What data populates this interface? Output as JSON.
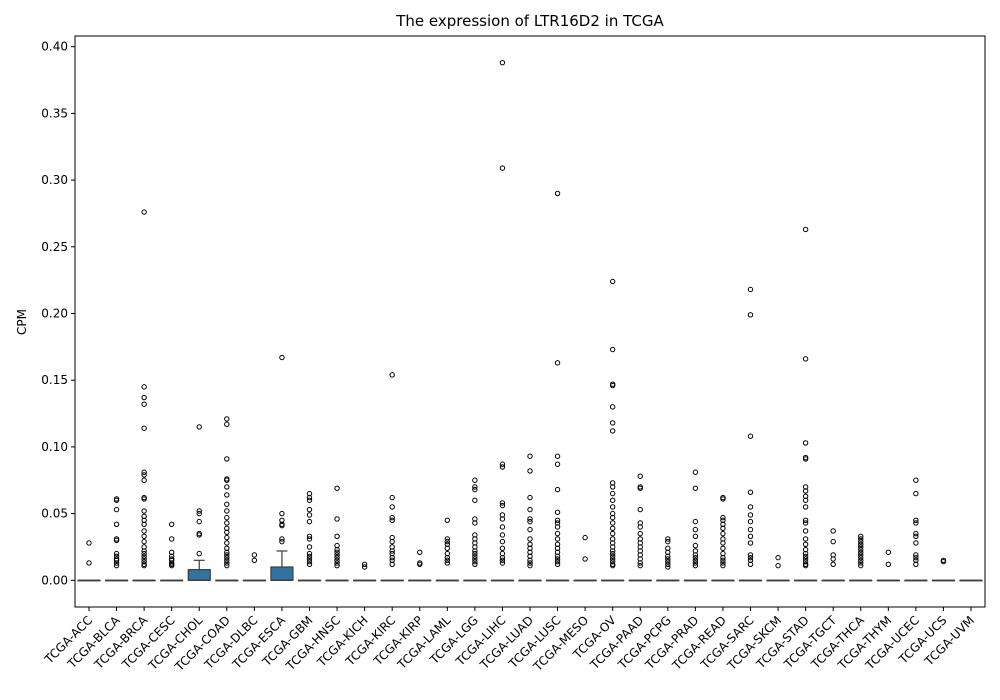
{
  "chart_data": {
    "type": "box",
    "title": "The expression of LTR16D2 in TCGA",
    "xlabel": "",
    "ylabel": "CPM",
    "ylim": [
      -0.02,
      0.408
    ],
    "yticks": [
      "0.00",
      "0.05",
      "0.10",
      "0.15",
      "0.20",
      "0.25",
      "0.30",
      "0.35",
      "0.40"
    ],
    "box_color": "#3274a1",
    "categories": [
      "TCGA-ACC",
      "TCGA-BLCA",
      "TCGA-BRCA",
      "TCGA-CESC",
      "TCGA-CHOL",
      "TCGA-COAD",
      "TCGA-DLBC",
      "TCGA-ESCA",
      "TCGA-GBM",
      "TCGA-HNSC",
      "TCGA-KICH",
      "TCGA-KIRC",
      "TCGA-KIRP",
      "TCGA-LAML",
      "TCGA-LGG",
      "TCGA-LIHC",
      "TCGA-LUAD",
      "TCGA-LUSC",
      "TCGA-MESO",
      "TCGA-OV",
      "TCGA-PAAD",
      "TCGA-PCPG",
      "TCGA-PRAD",
      "TCGA-READ",
      "TCGA-SARC",
      "TCGA-SKCM",
      "TCGA-STAD",
      "TCGA-TGCT",
      "TCGA-THCA",
      "TCGA-THYM",
      "TCGA-UCEC",
      "TCGA-UCS",
      "TCGA-UVM"
    ],
    "boxes": [
      {
        "q1": 0,
        "median": 0,
        "q3": 0,
        "whisker_high": 0,
        "outliers": [
          0.028,
          0.013
        ]
      },
      {
        "q1": 0,
        "median": 0,
        "q3": 0,
        "whisker_high": 0,
        "outliers": [
          0.061,
          0.06,
          0.053,
          0.042,
          0.031,
          0.03,
          0.02,
          0.018,
          0.016,
          0.015,
          0.013,
          0.011
        ]
      },
      {
        "q1": 0,
        "median": 0,
        "q3": 0,
        "whisker_high": 0,
        "outliers": [
          0.276,
          0.145,
          0.137,
          0.132,
          0.114,
          0.081,
          0.079,
          0.075,
          0.062,
          0.061,
          0.052,
          0.048,
          0.045,
          0.042,
          0.037,
          0.033,
          0.029,
          0.025,
          0.022,
          0.02,
          0.018,
          0.016,
          0.014,
          0.012,
          0.011
        ]
      },
      {
        "q1": 0,
        "median": 0,
        "q3": 0,
        "whisker_high": 0,
        "outliers": [
          0.042,
          0.031,
          0.021,
          0.018,
          0.016,
          0.015,
          0.013,
          0.012,
          0.011
        ]
      },
      {
        "q1": 0,
        "median": 0,
        "q3": 0.008,
        "whisker_high": 0.015,
        "outliers": [
          0.115,
          0.052,
          0.05,
          0.044,
          0.035,
          0.034,
          0.02
        ]
      },
      {
        "q1": 0,
        "median": 0,
        "q3": 0,
        "whisker_high": 0,
        "outliers": [
          0.121,
          0.117,
          0.091,
          0.076,
          0.075,
          0.07,
          0.064,
          0.057,
          0.052,
          0.047,
          0.043,
          0.039,
          0.036,
          0.032,
          0.028,
          0.024,
          0.021,
          0.019,
          0.017,
          0.015,
          0.013,
          0.011
        ]
      },
      {
        "q1": 0,
        "median": 0,
        "q3": 0,
        "whisker_high": 0,
        "outliers": [
          0.019,
          0.015
        ]
      },
      {
        "q1": 0,
        "median": 0,
        "q3": 0.01,
        "whisker_high": 0.022,
        "outliers": [
          0.167,
          0.05,
          0.045,
          0.042,
          0.041,
          0.031,
          0.029
        ]
      },
      {
        "q1": 0,
        "median": 0,
        "q3": 0,
        "whisker_high": 0,
        "outliers": [
          0.065,
          0.062,
          0.06,
          0.053,
          0.049,
          0.044,
          0.033,
          0.031,
          0.025,
          0.02,
          0.018,
          0.016,
          0.014,
          0.012
        ]
      },
      {
        "q1": 0,
        "median": 0,
        "q3": 0,
        "whisker_high": 0,
        "outliers": [
          0.069,
          0.046,
          0.033,
          0.026,
          0.023,
          0.021,
          0.019,
          0.017,
          0.015,
          0.013,
          0.011
        ]
      },
      {
        "q1": 0,
        "median": 0,
        "q3": 0,
        "whisker_high": 0,
        "outliers": [
          0.012,
          0.01
        ]
      },
      {
        "q1": 0,
        "median": 0,
        "q3": 0,
        "whisker_high": 0,
        "outliers": [
          0.154,
          0.062,
          0.055,
          0.047,
          0.045,
          0.032,
          0.029,
          0.025,
          0.022,
          0.02,
          0.017,
          0.015,
          0.012
        ]
      },
      {
        "q1": 0,
        "median": 0,
        "q3": 0,
        "whisker_high": 0,
        "outliers": [
          0.021,
          0.013,
          0.012
        ]
      },
      {
        "q1": 0,
        "median": 0,
        "q3": 0,
        "whisker_high": 0,
        "outliers": [
          0.045,
          0.031,
          0.029,
          0.027,
          0.024,
          0.02,
          0.017,
          0.015,
          0.013
        ]
      },
      {
        "q1": 0,
        "median": 0,
        "q3": 0,
        "whisker_high": 0,
        "outliers": [
          0.075,
          0.07,
          0.068,
          0.06,
          0.046,
          0.043,
          0.034,
          0.031,
          0.028,
          0.025,
          0.022,
          0.02,
          0.018,
          0.016,
          0.014,
          0.012
        ]
      },
      {
        "q1": 0,
        "median": 0,
        "q3": 0,
        "whisker_high": 0,
        "outliers": [
          0.388,
          0.309,
          0.087,
          0.085,
          0.058,
          0.056,
          0.049,
          0.046,
          0.04,
          0.034,
          0.029,
          0.024,
          0.02,
          0.017,
          0.015,
          0.013
        ]
      },
      {
        "q1": 0,
        "median": 0,
        "q3": 0,
        "whisker_high": 0,
        "outliers": [
          0.093,
          0.082,
          0.062,
          0.053,
          0.046,
          0.044,
          0.038,
          0.031,
          0.027,
          0.024,
          0.021,
          0.018,
          0.015,
          0.013,
          0.011
        ]
      },
      {
        "q1": 0,
        "median": 0,
        "q3": 0,
        "whisker_high": 0,
        "outliers": [
          0.29,
          0.163,
          0.093,
          0.087,
          0.068,
          0.051,
          0.045,
          0.043,
          0.04,
          0.035,
          0.031,
          0.027,
          0.024,
          0.021,
          0.018,
          0.016,
          0.014,
          0.012
        ]
      },
      {
        "q1": 0,
        "median": 0,
        "q3": 0,
        "whisker_high": 0,
        "outliers": [
          0.032,
          0.016
        ]
      },
      {
        "q1": 0,
        "median": 0,
        "q3": 0,
        "whisker_high": 0,
        "outliers": [
          0.224,
          0.173,
          0.147,
          0.146,
          0.13,
          0.118,
          0.112,
          0.073,
          0.07,
          0.065,
          0.06,
          0.055,
          0.05,
          0.047,
          0.043,
          0.039,
          0.035,
          0.031,
          0.028,
          0.025,
          0.022,
          0.02,
          0.018,
          0.016,
          0.014,
          0.012,
          0.011
        ]
      },
      {
        "q1": 0,
        "median": 0,
        "q3": 0,
        "whisker_high": 0,
        "outliers": [
          0.078,
          0.07,
          0.069,
          0.053,
          0.043,
          0.04,
          0.035,
          0.031,
          0.028,
          0.025,
          0.022,
          0.019,
          0.016,
          0.013,
          0.011
        ]
      },
      {
        "q1": 0,
        "median": 0,
        "q3": 0,
        "whisker_high": 0,
        "outliers": [
          0.031,
          0.029,
          0.024,
          0.021,
          0.018,
          0.016,
          0.014,
          0.012,
          0.01
        ]
      },
      {
        "q1": 0,
        "median": 0,
        "q3": 0,
        "whisker_high": 0,
        "outliers": [
          0.081,
          0.069,
          0.044,
          0.038,
          0.033,
          0.026,
          0.022,
          0.019,
          0.017,
          0.015,
          0.013,
          0.011
        ]
      },
      {
        "q1": 0,
        "median": 0,
        "q3": 0,
        "whisker_high": 0,
        "outliers": [
          0.062,
          0.061,
          0.047,
          0.045,
          0.042,
          0.039,
          0.035,
          0.031,
          0.028,
          0.024,
          0.02,
          0.017,
          0.015,
          0.013,
          0.011
        ]
      },
      {
        "q1": 0,
        "median": 0,
        "q3": 0,
        "whisker_high": 0,
        "outliers": [
          0.218,
          0.199,
          0.108,
          0.066,
          0.055,
          0.049,
          0.044,
          0.038,
          0.033,
          0.028,
          0.019,
          0.017,
          0.015,
          0.012
        ]
      },
      {
        "q1": 0,
        "median": 0,
        "q3": 0,
        "whisker_high": 0,
        "outliers": [
          0.017,
          0.011
        ]
      },
      {
        "q1": 0,
        "median": 0,
        "q3": 0,
        "whisker_high": 0,
        "outliers": [
          0.263,
          0.166,
          0.103,
          0.092,
          0.091,
          0.07,
          0.067,
          0.063,
          0.06,
          0.055,
          0.045,
          0.043,
          0.037,
          0.031,
          0.027,
          0.023,
          0.02,
          0.018,
          0.016,
          0.014,
          0.012,
          0.011
        ]
      },
      {
        "q1": 0,
        "median": 0,
        "q3": 0,
        "whisker_high": 0,
        "outliers": [
          0.037,
          0.029,
          0.019,
          0.016,
          0.012
        ]
      },
      {
        "q1": 0,
        "median": 0,
        "q3": 0,
        "whisker_high": 0,
        "outliers": [
          0.033,
          0.031,
          0.029,
          0.027,
          0.025,
          0.023,
          0.021,
          0.019,
          0.017,
          0.015,
          0.013,
          0.011
        ]
      },
      {
        "q1": 0,
        "median": 0,
        "q3": 0,
        "whisker_high": 0,
        "outliers": [
          0.021,
          0.012
        ]
      },
      {
        "q1": 0,
        "median": 0,
        "q3": 0,
        "whisker_high": 0,
        "outliers": [
          0.075,
          0.065,
          0.045,
          0.043,
          0.035,
          0.033,
          0.028,
          0.019,
          0.017,
          0.015,
          0.012
        ]
      },
      {
        "q1": 0,
        "median": 0,
        "q3": 0,
        "whisker_high": 0,
        "outliers": [
          0.015,
          0.014
        ]
      },
      {
        "q1": 0,
        "median": 0,
        "q3": 0,
        "whisker_high": 0,
        "outliers": []
      }
    ]
  }
}
